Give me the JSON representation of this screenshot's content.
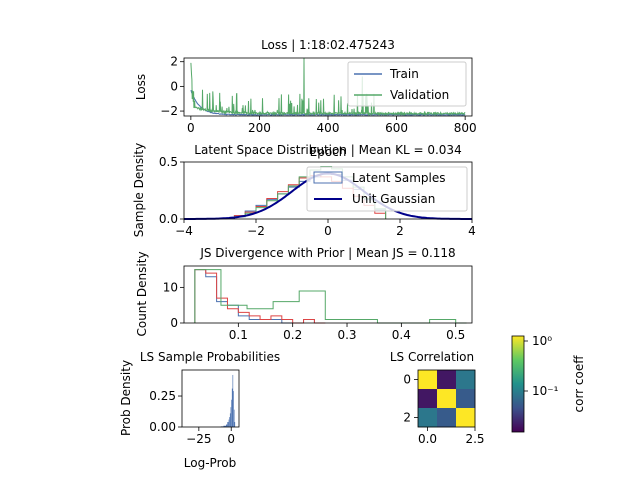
{
  "figure": {
    "background": "#ffffff"
  },
  "chart_data": [
    {
      "type": "line",
      "title": "Loss | 1:18:02.475243",
      "xlabel": "Epoch",
      "ylabel": "Loss",
      "xlim": [
        -20,
        820
      ],
      "ylim": [
        -2.4,
        2.3
      ],
      "xticks": [
        "0",
        "200",
        "400",
        "600",
        "800"
      ],
      "yticks": [
        "2",
        "0",
        "−2"
      ],
      "xtick_values": [
        0,
        200,
        400,
        600,
        800
      ],
      "ytick_values": [
        2,
        0,
        -2
      ],
      "legend": "top-right",
      "series": [
        {
          "name": "Train",
          "color": "#4c72b0",
          "epochs": 800,
          "trend": "decreasing",
          "start": -0.3,
          "end": -2.3
        },
        {
          "name": "Validation",
          "color": "#55a868",
          "epochs": 800,
          "trend": "noisy spikes",
          "start": 1.9,
          "end": -2.2,
          "max_spike": 2.3
        }
      ]
    },
    {
      "type": "histogram",
      "title": "Latent Space Distribution | Mean KL = 0.034",
      "xlabel": "",
      "ylabel": "Sample Density",
      "xlim": [
        -4,
        4
      ],
      "ylim": [
        0,
        0.5
      ],
      "xticks": [
        "−4",
        "−2",
        "0",
        "2",
        "4"
      ],
      "yticks": [
        "0.0",
        "0.5"
      ],
      "xtick_values": [
        -4,
        -2,
        0,
        2,
        4
      ],
      "ytick_values": [
        0,
        0.5
      ],
      "legend": "top-right",
      "series": [
        {
          "name": "Latent Samples",
          "style": "step",
          "colors": [
            "#4c72b0",
            "#dd4444",
            "#55a868"
          ]
        },
        {
          "name": "Unit Gaussian",
          "style": "line",
          "color": "#00008b"
        }
      ],
      "bin_edges": [
        -2.6,
        -2.3,
        -2.0,
        -1.7,
        -1.4,
        -1.1,
        -0.8,
        -0.5,
        -0.2,
        0.1,
        0.4,
        0.7,
        1.0,
        1.3,
        1.6
      ],
      "latent_dims": [
        {
          "color": "#4c72b0",
          "densities": [
            0.03,
            0.07,
            0.12,
            0.17,
            0.22,
            0.28,
            0.33,
            0.37,
            0.4,
            0.39,
            0.34,
            0.26,
            0.17,
            0.08
          ]
        },
        {
          "color": "#dd4444",
          "densities": [
            0.03,
            0.06,
            0.11,
            0.18,
            0.24,
            0.3,
            0.36,
            0.38,
            0.37,
            0.33,
            0.27,
            0.2,
            0.12,
            0.05
          ]
        },
        {
          "color": "#55a868",
          "densities": [
            0.02,
            0.05,
            0.1,
            0.16,
            0.22,
            0.29,
            0.37,
            0.43,
            0.46,
            0.44,
            0.37,
            0.28,
            0.18,
            0.09
          ]
        }
      ]
    },
    {
      "type": "histogram",
      "title": "JS Divergence with Prior | Mean JS = 0.118",
      "xlabel": "",
      "ylabel": "Count Density",
      "xlim": [
        0,
        0.53
      ],
      "ylim": [
        0,
        16
      ],
      "xticks": [
        "0.1",
        "0.2",
        "0.3",
        "0.4",
        "0.5"
      ],
      "yticks": [
        "0",
        "10"
      ],
      "xtick_values": [
        0.1,
        0.2,
        0.3,
        0.4,
        0.5
      ],
      "ytick_values": [
        0,
        10
      ],
      "series": [
        {
          "color": "#4c72b0",
          "bin_edges": [
            0.02,
            0.04,
            0.06,
            0.08,
            0.1,
            0.12,
            0.14,
            0.16,
            0.18,
            0.2,
            0.22,
            0.24,
            0.26
          ],
          "counts": [
            15,
            13,
            6,
            5,
            2,
            1,
            1,
            1,
            0,
            0,
            1,
            0
          ]
        },
        {
          "color": "#dd4444",
          "bin_edges": [
            0.02,
            0.04,
            0.06,
            0.08,
            0.1,
            0.12,
            0.14,
            0.16,
            0.18,
            0.2,
            0.22,
            0.24,
            0.26
          ],
          "counts": [
            15,
            14,
            7,
            4,
            3,
            2,
            1,
            2,
            1,
            0,
            1,
            0
          ]
        },
        {
          "color": "#55a868",
          "bin_edges": [
            0.02,
            0.068,
            0.116,
            0.164,
            0.212,
            0.26,
            0.308,
            0.356,
            0.404,
            0.452,
            0.5,
            0.52
          ],
          "counts": [
            15,
            5,
            4,
            6,
            9,
            1,
            1,
            0,
            0,
            1,
            0
          ]
        }
      ]
    },
    {
      "type": "histogram",
      "title": "LS Sample Probabilities",
      "xlabel": "Log-Prob",
      "ylabel": "Prob Density",
      "xlim": [
        -38,
        6
      ],
      "ylim": [
        0,
        0.46
      ],
      "xticks": [
        "−25",
        "0"
      ],
      "yticks": [
        "0.00",
        "0.25"
      ],
      "xtick_values": [
        -25,
        0
      ],
      "ytick_values": [
        0,
        0.25
      ],
      "bar_color": "#4c72b0",
      "bin_edges": [
        -8.0,
        -6.0,
        -4.0,
        -3.0,
        -2.0,
        -1.5,
        -1.0,
        -0.5,
        0.0,
        0.5,
        1.0,
        1.5,
        2.0,
        2.5,
        3.0
      ],
      "densities": [
        0.005,
        0.01,
        0.02,
        0.04,
        0.06,
        0.08,
        0.11,
        0.16,
        0.22,
        0.31,
        0.42,
        0.29,
        0.14,
        0.04
      ]
    },
    {
      "type": "heatmap",
      "title": "LS Correlation",
      "xticks": [
        "0.0",
        "2.5"
      ],
      "yticks": [
        "0",
        "2"
      ],
      "matrix": [
        [
          1.0,
          0.02,
          0.08
        ],
        [
          0.02,
          1.0,
          0.05
        ],
        [
          0.08,
          0.05,
          1.0
        ]
      ],
      "colorscale": "viridis",
      "colorbar": {
        "label": "corr coeff",
        "scale": "log",
        "ticks": [
          "10⁰",
          "10⁻¹"
        ]
      }
    }
  ]
}
